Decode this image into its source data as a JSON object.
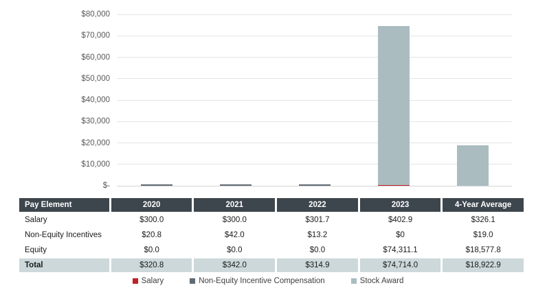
{
  "chart_data": {
    "type": "bar",
    "stacked": true,
    "title": "",
    "xlabel": "",
    "ylabel": "",
    "categories": [
      "2020",
      "2021",
      "2022",
      "2023",
      "4-Year Average"
    ],
    "series": [
      {
        "name": "Salary",
        "color": "#c02028",
        "values": [
          300.0,
          300.0,
          301.7,
          402.9,
          326.1
        ]
      },
      {
        "name": "Non-Equity Incentive Compensation",
        "color": "#5f6b74",
        "values": [
          20.8,
          42.0,
          13.2,
          0,
          19.0
        ]
      },
      {
        "name": "Stock Award",
        "color": "#aabcc0",
        "values": [
          0.0,
          0.0,
          0.0,
          74311.1,
          18577.8
        ]
      }
    ],
    "ylim": [
      0,
      80000
    ],
    "ytick_step": 10000,
    "ytick_labels": [
      "$-",
      "$10,000",
      "$20,000",
      "$30,000",
      "$40,000",
      "$50,000",
      "$60,000",
      "$70,000",
      "$80,000"
    ],
    "grid": "horizontal",
    "legend_position": "bottom"
  },
  "table": {
    "header": [
      "Pay Element",
      "2020",
      "2021",
      "2022",
      "2023",
      "4-Year Average"
    ],
    "rows": [
      {
        "label": "Salary",
        "values": [
          "$300.0",
          "$300.0",
          "$301.7",
          "$402.9",
          "$326.1"
        ]
      },
      {
        "label": "Non-Equity Incentives",
        "values": [
          "$20.8",
          "$42.0",
          "$13.2",
          "$0",
          "$19.0"
        ]
      },
      {
        "label": "Equity",
        "values": [
          "$0.0",
          "$0.0",
          "$0.0",
          "$74,311.1",
          "$18,577.8"
        ]
      }
    ],
    "total_row": {
      "label": "Total",
      "values": [
        "$320.8",
        "$342.0",
        "$314.9",
        "$74,714.0",
        "$18,922.9"
      ]
    }
  },
  "legend": {
    "items": [
      {
        "label": "Salary",
        "color": "#c02028"
      },
      {
        "label": "Non-Equity Incentive Compensation",
        "color": "#5f6b74"
      },
      {
        "label": "Stock Award",
        "color": "#aabcc0"
      }
    ]
  }
}
